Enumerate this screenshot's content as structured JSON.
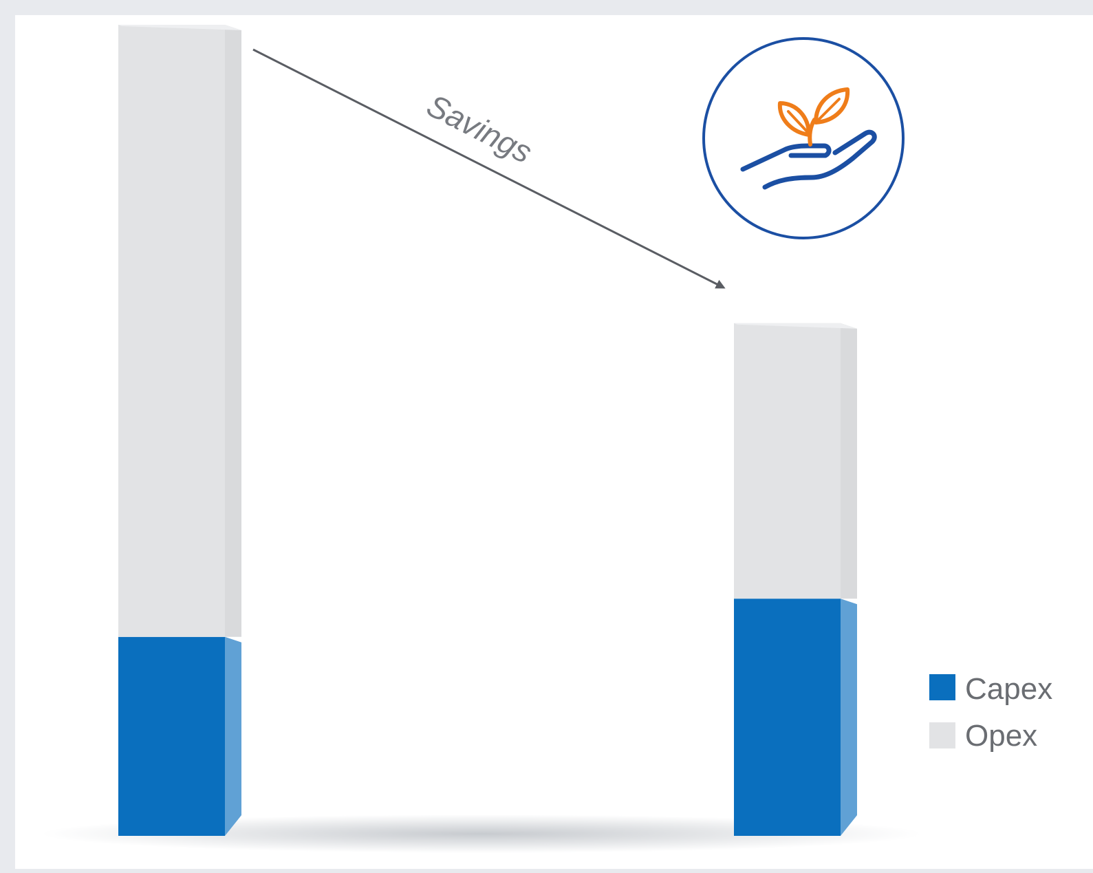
{
  "chart_data": {
    "type": "bar",
    "stacked": true,
    "categories": [
      "",
      ""
    ],
    "series": [
      {
        "name": "Capex",
        "values": [
          26,
          31
        ],
        "color": "#0a6fbe"
      },
      {
        "name": "Opex",
        "values": [
          80,
          36
        ],
        "color": "#e2e3e5"
      }
    ],
    "annotation": {
      "text": "Savings",
      "from_bar": 0,
      "to_bar": 1
    },
    "legend": {
      "position": "right",
      "items": [
        {
          "label": "Capex",
          "color": "#0a6fbe"
        },
        {
          "label": "Opex",
          "color": "#e2e3e5"
        }
      ]
    },
    "ylim": [
      0,
      106
    ],
    "title": "",
    "xlabel": "",
    "ylabel": ""
  },
  "icon": {
    "name": "hand-holding-plant-icon",
    "ring_color": "#1b4fa3",
    "hand_color": "#1b4fa3",
    "leaf_color": "#ef7d1a"
  },
  "colors": {
    "arrow": "#5a5d63",
    "page_bg": "#e8eaee",
    "frame_bg": "#ffffff"
  }
}
